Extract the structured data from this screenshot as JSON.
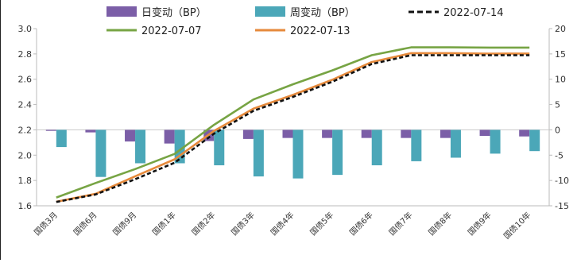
{
  "chart_data": {
    "type": "bar",
    "title": "",
    "xlabel": "",
    "ylabel": "",
    "y2label": "",
    "categories": [
      "国债3月",
      "国债6月",
      "国债9月",
      "国债1年",
      "国债2年",
      "国债3年",
      "国债4年",
      "国债5年",
      "国债6年",
      "国债7年",
      "国债8年",
      "国债9年",
      "国债10年"
    ],
    "ylim": [
      1.6,
      3.0
    ],
    "yticks": [
      "1.6",
      "1.8",
      "2.0",
      "2.2",
      "2.4",
      "2.6",
      "2.8",
      "3.0"
    ],
    "y2lim": [
      -15,
      20
    ],
    "y2ticks": [
      "-15",
      "-10",
      "-5",
      "0",
      "5",
      "10",
      "15",
      "20"
    ],
    "grid": false,
    "legend_position": "top",
    "bar_series": [
      {
        "name": "日变动（BP）",
        "axis": "right",
        "color": "#7b5ea7",
        "values": [
          -0.2,
          -0.5,
          -2.3,
          -2.7,
          -2.2,
          -1.8,
          -1.6,
          -1.6,
          -1.6,
          -1.6,
          -1.6,
          -1.2,
          -1.3
        ]
      },
      {
        "name": "周变动（BP）",
        "axis": "right",
        "color": "#4ba7b8",
        "values": [
          -3.4,
          -9.3,
          -6.6,
          -6.6,
          -7.0,
          -9.2,
          -9.6,
          -8.9,
          -7.0,
          -6.2,
          -5.5,
          -4.7,
          -4.2
        ]
      }
    ],
    "line_series": [
      {
        "name": "2022-07-14",
        "axis": "left",
        "color": "#111111",
        "dash": true,
        "values": [
          1.63,
          1.69,
          1.81,
          1.94,
          2.17,
          2.35,
          2.46,
          2.58,
          2.72,
          2.79,
          2.79,
          2.79,
          2.79
        ]
      },
      {
        "name": "2022-07-07",
        "axis": "left",
        "color": "#77a444",
        "dash": false,
        "values": [
          1.665,
          1.78,
          1.89,
          2.01,
          2.24,
          2.44,
          2.56,
          2.67,
          2.79,
          2.852,
          2.852,
          2.85,
          2.85
        ]
      },
      {
        "name": "2022-07-13",
        "axis": "left",
        "color": "#e68a3c",
        "dash": false,
        "values": [
          1.632,
          1.695,
          1.833,
          1.967,
          2.192,
          2.368,
          2.476,
          2.596,
          2.736,
          2.806,
          2.806,
          2.802,
          2.803
        ]
      }
    ]
  }
}
